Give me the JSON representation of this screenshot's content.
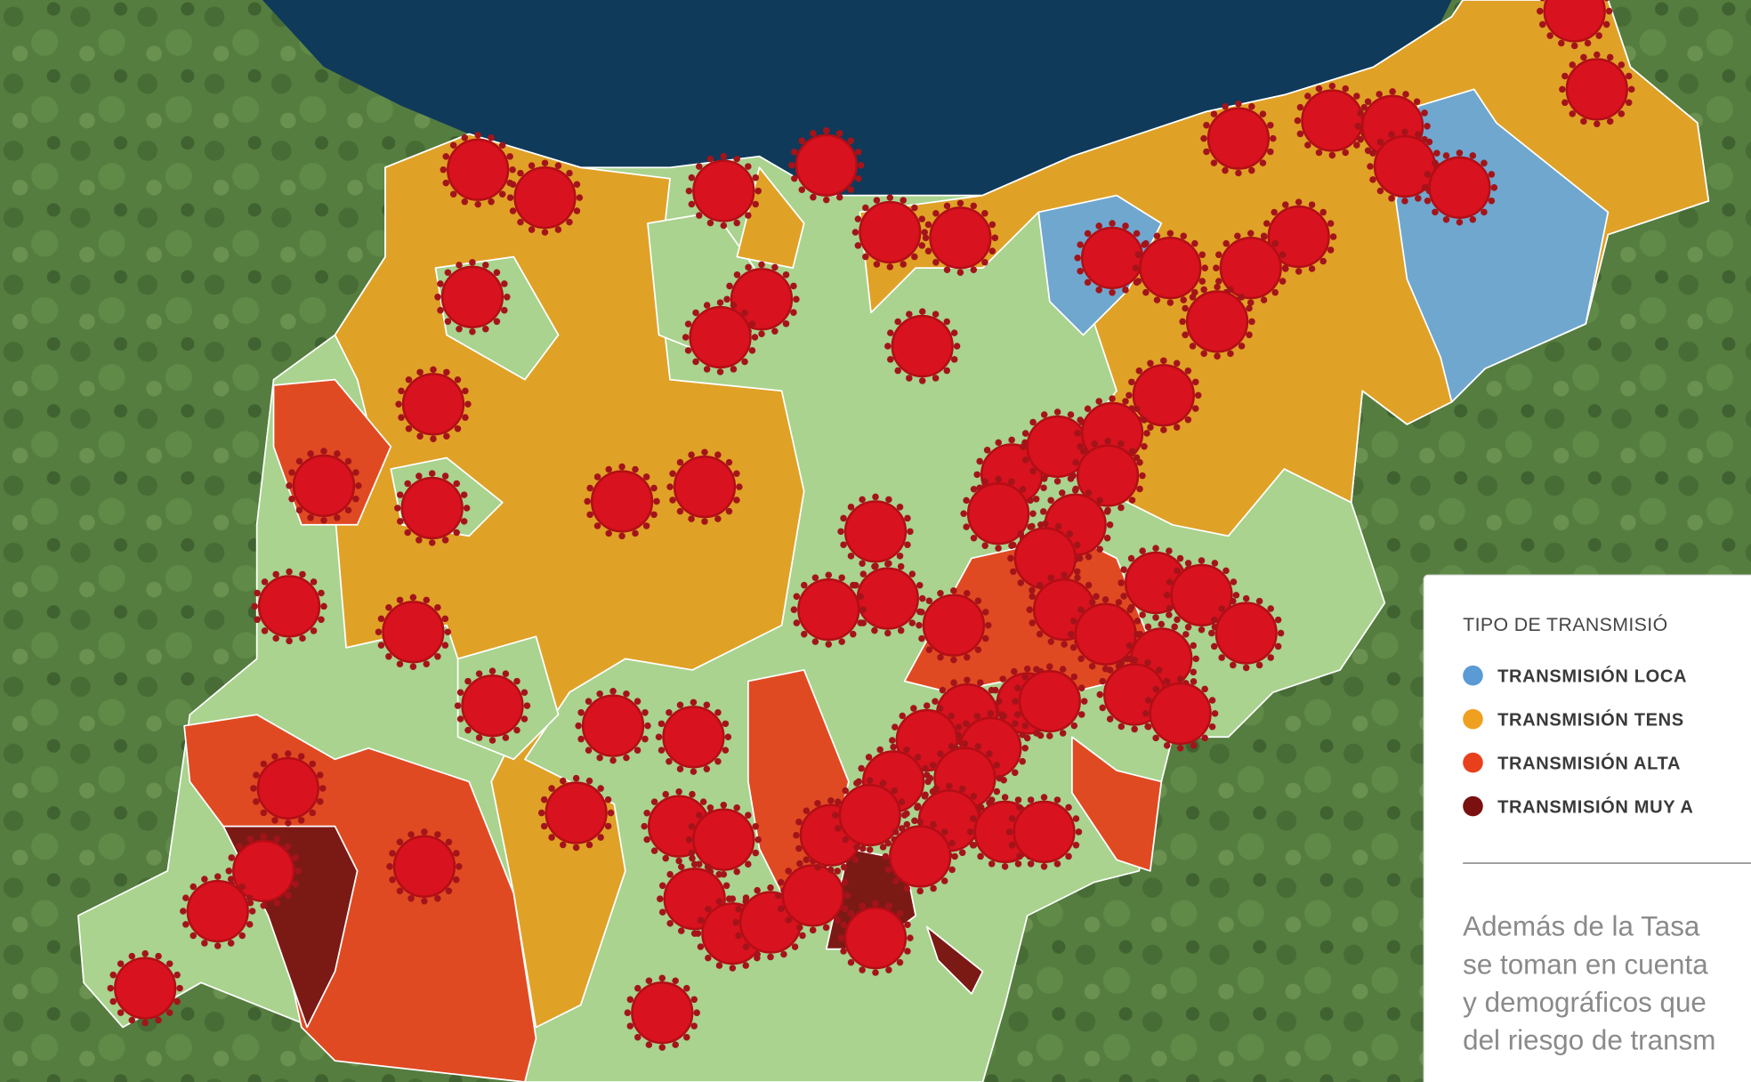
{
  "legend": {
    "title": "TIPO DE TRANSMISIÓ",
    "items": [
      {
        "label": "TRANSMISIÓN LOCA",
        "color": "#5b9bd5"
      },
      {
        "label": "TRANSMISIÓN TENS",
        "color": "#f0a020"
      },
      {
        "label": "TRANSMISIÓN ALTA",
        "color": "#e8401c"
      },
      {
        "label": "TRANSMISIÓN MUY A",
        "color": "#7b1010"
      }
    ]
  },
  "note": {
    "lines": [
      "Además de la Tasa",
      "se toman en cuenta",
      "y demográficos que",
      "del riesgo de transm"
    ]
  }
}
